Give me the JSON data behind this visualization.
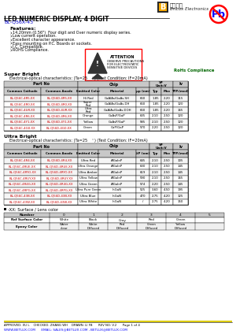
{
  "title": "LED NUMERIC DISPLAY, 4 DIGIT",
  "part_number": "BL-Q56X-43",
  "features": [
    "14.20mm (0.56\")  Four digit and Over numeric display series.",
    "Low current operation.",
    "Excellent character appearance.",
    "Easy mounting on P.C. Boards or sockets.",
    "I.C. Compatible.",
    "ROHS Compliance."
  ],
  "super_bright_label": "Super Bright",
  "sb_col_headers": [
    "Common Cathode",
    "Common Anode",
    "Emitted Color",
    "Material",
    "μp (nm)",
    "Typ",
    "Max",
    "TYP.(mcd)"
  ],
  "sb_rows": [
    [
      "BL-Q56C-4R5-XX",
      "BL-Q56D-4R5-XX",
      "Hi Red",
      "GaAlAs/GaAs.SH",
      "660",
      "1.85",
      "2.20",
      "115"
    ],
    [
      "BL-Q56C-4R0-XX",
      "BL-Q56D-4R0-XX",
      "Super\nRed",
      "GaAlAs/GaAs.DH",
      "660",
      "1.85",
      "2.20",
      "120"
    ],
    [
      "BL-Q56C-4UR-XX",
      "BL-Q56D-4UR-XX",
      "Ultra\nRed",
      "GaAlAs/GaAs.DOH",
      "660",
      "1.85",
      "2.20",
      "165"
    ],
    [
      "BL-Q56C-4R6-XX",
      "BL-Q56D-4R6-XX",
      "Orange",
      "GaAsP/GaP",
      "635",
      "2.10",
      "2.50",
      "120"
    ],
    [
      "BL-Q56C-4Y1-XX",
      "BL-Q56D-4Y1-XX",
      "Yellow",
      "GaAsP/GaP",
      "585",
      "2.10",
      "2.50",
      "120"
    ],
    [
      "BL-Q56C-4G0-XX",
      "BL-Q56D-4G0-XX",
      "Green",
      "GaP/GaP",
      "570",
      "2.20",
      "2.50",
      "120"
    ]
  ],
  "ultra_bright_label": "Ultra Bright",
  "ub_col_headers": [
    "Common Cathode",
    "Common Anode",
    "Emitted Color",
    "Material",
    "λP (nm)",
    "Typ",
    "Max",
    "TYP.(mcd)"
  ],
  "ub_rows": [
    [
      "BL-Q56C-4R4-XX",
      "BL-Q56D-4R4-XX",
      "Ultra Red",
      "AlGaInP",
      "645",
      "2.10",
      "2.50",
      "105"
    ],
    [
      "BL-Q56C-4RUE-XX",
      "BL-Q56D-4RUE-XX",
      "Ultra Orange",
      "AlGaInP",
      "630",
      "2.10",
      "2.50",
      "145"
    ],
    [
      "BL-Q56C-4RYO-XX",
      "BL-Q56D-4RYO-XX",
      "Ultra Amber",
      "AlGaInP",
      "619",
      "2.10",
      "2.50",
      "145"
    ],
    [
      "BL-Q56C-4RUY-XX",
      "BL-Q56D-4RUY-XX",
      "Ultra Yellow",
      "AlGaInP",
      "590",
      "2.10",
      "2.50",
      "165"
    ],
    [
      "BL-Q56C-4R4G-XX",
      "BL-Q56D-4R4G-XX",
      "Ultra Green",
      "AlGaInP",
      "574",
      "2.20",
      "2.50",
      "145"
    ],
    [
      "BL-Q56C-4RPG-XX",
      "BL-Q56D-4RPG-XX",
      "Ultra Pure Green",
      "InGaN",
      "525",
      "3.60",
      "4.50",
      "195"
    ],
    [
      "BL-Q56C-43B-XX",
      "BL-Q56D-43B-XX",
      "Ultra Blue",
      "InGaN",
      "470",
      "2.75",
      "4.20",
      "125"
    ],
    [
      "BL-Q56C-43W-XX",
      "BL-Q56D-43W-XX",
      "Ultra White",
      "InGaN",
      "/",
      "2.75",
      "4.20",
      "150"
    ]
  ],
  "surface_label": "-XX: Surface / Lens color",
  "surface_numbers": [
    "0",
    "1",
    "2",
    "3",
    "4",
    "5"
  ],
  "surface_ref_colors": [
    "White",
    "Black",
    "Gray",
    "Red",
    "Green",
    ""
  ],
  "epoxy_colors": [
    "Water\nclear",
    "White\nDiffused",
    "Red\nDiffused",
    "Green\nDiffused",
    "Yellow\nDiffused",
    ""
  ],
  "footer_line1": "APPROVED: XU L    CHECKED: ZHANG WH    DRAWN: LI FB      REV NO: V.2      Page 1 of 4",
  "footer_line2": "WWW.BETLUX.COM      EMAIL: SALES@BETLUX.COM , BETLUX@BETLUX.COM",
  "bg_color": "#ffffff",
  "table_header_bg": "#c8c8c8",
  "logo_bg_dark": "#2a2a2a",
  "logo_bg_yellow": "#f5a800",
  "attention_box_color": "#ff0000"
}
